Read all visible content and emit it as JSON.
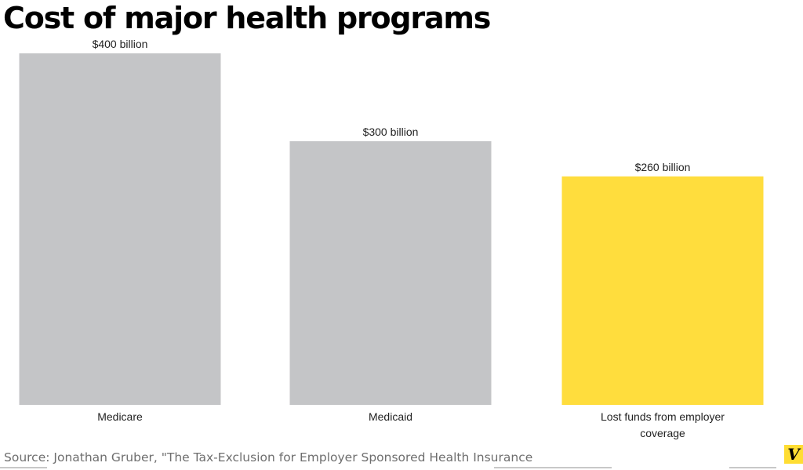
{
  "title": "Cost of major health programs",
  "source": "Source: Jonathan Gruber, \"The Tax-Exclusion for Employer Sponsored Health Insurance",
  "logo": {
    "letter": "V",
    "color": "#ffdd33"
  },
  "chart_data": {
    "type": "bar",
    "title": "Cost of major health programs",
    "xlabel": "",
    "ylabel": "",
    "unit": "billion USD",
    "ylim": [
      0,
      400
    ],
    "grid": false,
    "categories": [
      "Medicare",
      "Medicaid",
      "Lost funds from employer coverage"
    ],
    "label_lines": [
      [
        "Medicare"
      ],
      [
        "Medicaid"
      ],
      [
        "Lost funds from employer",
        "coverage"
      ]
    ],
    "values": [
      400,
      300,
      260
    ],
    "data_labels": [
      "$400 billion",
      "$300 billion",
      "$260 billion"
    ],
    "colors": [
      "#c4c5c7",
      "#c4c5c7",
      "#ffdd3d"
    ]
  }
}
